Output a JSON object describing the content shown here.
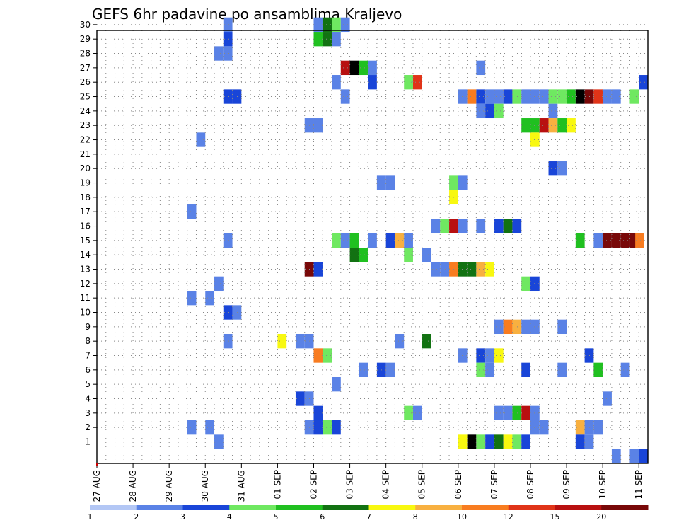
{
  "chart_data": {
    "type": "heatmap",
    "title": "GEFS 6hr padavine po ansamblima Kraljevo",
    "xlabel": "",
    "ylabel": "",
    "x_ticks": [
      "27 AUG",
      "28 AUG",
      "29 AUG",
      "30 AUG",
      "31 AUG",
      "01 SEP",
      "02 SEP",
      "03 SEP",
      "04 SEP",
      "05 SEP",
      "06 SEP",
      "07 SEP",
      "08 SEP",
      "09 SEP",
      "10 SEP",
      "11 SEP"
    ],
    "x_range_hours": [
      0,
      366
    ],
    "y_ticks": [
      "1",
      "2",
      "3",
      "4",
      "5",
      "6",
      "7",
      "8",
      "9",
      "10",
      "11",
      "12",
      "13",
      "14",
      "15",
      "16",
      "17",
      "18",
      "19",
      "20",
      "21",
      "22",
      "23",
      "24",
      "25",
      "26",
      "27",
      "28",
      "29",
      "30"
    ],
    "y_range": [
      0,
      30
    ],
    "grid": true,
    "legend": {
      "position": "bottom",
      "labels": [
        "1",
        "2",
        "3",
        "4",
        "5",
        "6",
        "7",
        "8",
        "10",
        "12",
        "15",
        "20"
      ],
      "colors": [
        "#b3c7f5",
        "#5a82e6",
        "#1945d8",
        "#6fe861",
        "#20c020",
        "#127212",
        "#f8f810",
        "#f8b040",
        "#f87c20",
        "#e03418",
        "#b81010",
        "#780808"
      ]
    },
    "series": [
      {
        "member": 30,
        "cells": [
          [
            3.5,
            1
          ],
          [
            6,
            1
          ],
          [
            6.25,
            5
          ],
          [
            6.5,
            3
          ],
          [
            6.75,
            1
          ]
        ]
      },
      {
        "member": 29,
        "cells": [
          [
            3.5,
            2
          ],
          [
            6,
            4
          ],
          [
            6.25,
            5
          ],
          [
            6.5,
            1
          ]
        ]
      },
      {
        "member": 28,
        "cells": [
          [
            3.25,
            1
          ],
          [
            3.5,
            1
          ]
        ]
      },
      {
        "member": 27,
        "cells": [
          [
            6.75,
            10
          ],
          [
            7,
            12
          ],
          [
            7.25,
            4
          ],
          [
            7.5,
            1
          ],
          [
            10.5,
            1
          ]
        ]
      },
      {
        "member": 26,
        "cells": [
          [
            6.5,
            1
          ],
          [
            7.5,
            2
          ],
          [
            8.5,
            3
          ],
          [
            8.75,
            9
          ],
          [
            15,
            2
          ]
        ]
      },
      {
        "member": 25,
        "cells": [
          [
            3.5,
            2
          ],
          [
            3.75,
            2
          ],
          [
            6.75,
            1
          ],
          [
            10,
            1
          ],
          [
            10.25,
            8
          ],
          [
            10.5,
            2
          ],
          [
            10.75,
            1
          ],
          [
            11,
            1
          ],
          [
            11.25,
            2
          ],
          [
            11.5,
            3
          ],
          [
            11.75,
            1
          ],
          [
            12,
            1
          ],
          [
            12.25,
            1
          ],
          [
            12.5,
            3
          ],
          [
            12.75,
            3
          ],
          [
            13,
            4
          ],
          [
            13.25,
            12
          ],
          [
            13.5,
            11
          ],
          [
            13.75,
            9
          ],
          [
            14,
            1
          ],
          [
            14.25,
            1
          ],
          [
            14.75,
            3
          ]
        ]
      },
      {
        "member": 24,
        "cells": [
          [
            10.5,
            1
          ],
          [
            10.75,
            2
          ],
          [
            11,
            3
          ],
          [
            12.5,
            1
          ]
        ]
      },
      {
        "member": 23,
        "cells": [
          [
            5.75,
            1
          ],
          [
            6,
            1
          ],
          [
            11.75,
            4
          ],
          [
            12,
            4
          ],
          [
            12.25,
            10
          ],
          [
            12.5,
            7
          ],
          [
            12.75,
            4
          ],
          [
            13,
            6
          ]
        ]
      },
      {
        "member": 22,
        "cells": [
          [
            2.75,
            1
          ],
          [
            12,
            6
          ]
        ]
      },
      {
        "member": 20,
        "cells": [
          [
            12.5,
            2
          ],
          [
            12.75,
            1
          ]
        ]
      },
      {
        "member": 19,
        "cells": [
          [
            7.75,
            1
          ],
          [
            8,
            1
          ],
          [
            9.75,
            3
          ],
          [
            10,
            1
          ]
        ]
      },
      {
        "member": 18,
        "cells": [
          [
            9.75,
            6
          ]
        ]
      },
      {
        "member": 17,
        "cells": [
          [
            2.5,
            1
          ]
        ]
      },
      {
        "member": 16,
        "cells": [
          [
            9.25,
            1
          ],
          [
            9.5,
            3
          ],
          [
            9.75,
            10
          ],
          [
            10,
            1
          ],
          [
            10.5,
            1
          ],
          [
            11,
            2
          ],
          [
            11.25,
            5
          ],
          [
            11.5,
            2
          ]
        ]
      },
      {
        "member": 15,
        "cells": [
          [
            3.5,
            1
          ],
          [
            6.5,
            3
          ],
          [
            6.75,
            1
          ],
          [
            7,
            4
          ],
          [
            7.5,
            1
          ],
          [
            8,
            2
          ],
          [
            8.25,
            7
          ],
          [
            8.5,
            1
          ],
          [
            13.25,
            4
          ],
          [
            13.75,
            1
          ],
          [
            14,
            11
          ],
          [
            14.25,
            11
          ],
          [
            14.5,
            11
          ],
          [
            14.75,
            11
          ],
          [
            14.9,
            8
          ]
        ]
      },
      {
        "member": 14,
        "cells": [
          [
            7,
            5
          ],
          [
            7.25,
            4
          ],
          [
            8.5,
            3
          ],
          [
            9,
            1
          ]
        ]
      },
      {
        "member": 13,
        "cells": [
          [
            5.75,
            11
          ],
          [
            6,
            2
          ],
          [
            9.25,
            1
          ],
          [
            9.5,
            1
          ],
          [
            9.75,
            8
          ],
          [
            10,
            5
          ],
          [
            10.25,
            5
          ],
          [
            10.5,
            7
          ],
          [
            10.75,
            6
          ]
        ]
      },
      {
        "member": 12,
        "cells": [
          [
            3.25,
            1
          ],
          [
            11.75,
            3
          ],
          [
            12,
            2
          ]
        ]
      },
      {
        "member": 11,
        "cells": [
          [
            2.5,
            1
          ],
          [
            3,
            1
          ]
        ]
      },
      {
        "member": 10,
        "cells": [
          [
            3.5,
            2
          ],
          [
            3.75,
            1
          ]
        ]
      },
      {
        "member": 9,
        "cells": [
          [
            11,
            1
          ],
          [
            11.25,
            8
          ],
          [
            11.5,
            7
          ],
          [
            11.75,
            1
          ],
          [
            12,
            1
          ],
          [
            12.75,
            1
          ]
        ]
      },
      {
        "member": 8,
        "cells": [
          [
            3.5,
            1
          ],
          [
            5,
            6
          ],
          [
            5.5,
            1
          ],
          [
            5.75,
            1
          ],
          [
            8.25,
            1
          ],
          [
            9,
            5
          ]
        ]
      },
      {
        "member": 7,
        "cells": [
          [
            6,
            8
          ],
          [
            6.25,
            3
          ],
          [
            10,
            1
          ],
          [
            10.5,
            2
          ],
          [
            10.75,
            1
          ],
          [
            11,
            6
          ],
          [
            13.5,
            2
          ]
        ]
      },
      {
        "member": 6,
        "cells": [
          [
            7.25,
            1
          ],
          [
            7.75,
            2
          ],
          [
            8,
            1
          ],
          [
            10.5,
            3
          ],
          [
            10.75,
            1
          ],
          [
            11.75,
            2
          ],
          [
            12.75,
            1
          ],
          [
            13.75,
            4
          ],
          [
            14.5,
            1
          ]
        ]
      },
      {
        "member": 5,
        "cells": [
          [
            6.5,
            1
          ]
        ]
      },
      {
        "member": 4,
        "cells": [
          [
            5.5,
            2
          ],
          [
            5.75,
            1
          ],
          [
            14,
            1
          ]
        ]
      },
      {
        "member": 3,
        "cells": [
          [
            6,
            2
          ],
          [
            8.5,
            3
          ],
          [
            8.75,
            1
          ],
          [
            11,
            1
          ],
          [
            11.25,
            1
          ],
          [
            11.5,
            4
          ],
          [
            11.75,
            10
          ],
          [
            12,
            1
          ]
        ]
      },
      {
        "member": 2,
        "cells": [
          [
            2.5,
            1
          ],
          [
            3,
            1
          ],
          [
            5.75,
            1
          ],
          [
            6,
            2
          ],
          [
            6.25,
            3
          ],
          [
            6.5,
            2
          ],
          [
            12,
            1
          ],
          [
            12.25,
            1
          ],
          [
            13.25,
            7
          ],
          [
            13.5,
            1
          ],
          [
            13.75,
            1
          ]
        ]
      },
      {
        "member": 1,
        "cells": [
          [
            3.25,
            1
          ],
          [
            10,
            6
          ],
          [
            10.25,
            12
          ],
          [
            10.5,
            3
          ],
          [
            10.75,
            2
          ],
          [
            11,
            5
          ],
          [
            11.25,
            6
          ],
          [
            11.5,
            3
          ],
          [
            11.75,
            2
          ],
          [
            13.25,
            2
          ],
          [
            13.5,
            1
          ]
        ]
      },
      {
        "member": 0,
        "cells": [
          [
            14.25,
            1
          ],
          [
            14.75,
            1
          ],
          [
            15,
            2
          ]
        ]
      }
    ]
  }
}
